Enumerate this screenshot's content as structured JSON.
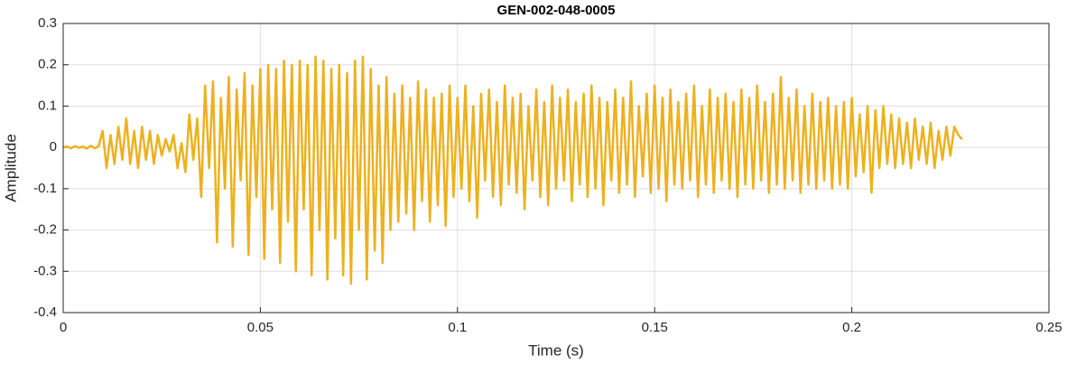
{
  "chart_data": {
    "type": "line",
    "title": "GEN-002-048-0005",
    "x_label": "Time (s)",
    "y_label": "Amplitude",
    "color": "#EDB120",
    "grid": true,
    "xlim": [
      0,
      0.25
    ],
    "xticks": [
      0,
      0.05,
      0.1,
      0.15,
      0.2,
      0.25
    ],
    "ylim": [
      -0.4,
      0.3
    ],
    "yticks": [
      -0.4,
      -0.3,
      -0.2,
      -0.1,
      0,
      0.1,
      0.2,
      0.3
    ],
    "x": [
      0,
      0.001,
      0.002,
      0.003,
      0.004,
      0.005,
      0.006,
      0.007,
      0.008,
      0.009,
      0.01,
      0.011,
      0.012,
      0.013,
      0.014,
      0.015,
      0.016,
      0.017,
      0.018,
      0.019,
      0.02,
      0.021,
      0.022,
      0.023,
      0.024,
      0.025,
      0.026,
      0.027,
      0.028,
      0.029,
      0.03,
      0.031,
      0.032,
      0.033,
      0.034,
      0.035,
      0.036,
      0.037,
      0.038,
      0.039,
      0.04,
      0.041,
      0.042,
      0.043,
      0.044,
      0.045,
      0.046,
      0.047,
      0.048,
      0.049,
      0.05,
      0.051,
      0.052,
      0.053,
      0.054,
      0.055,
      0.056,
      0.057,
      0.058,
      0.059,
      0.06,
      0.061,
      0.062,
      0.063,
      0.064,
      0.065,
      0.066,
      0.067,
      0.068,
      0.069,
      0.07,
      0.071,
      0.072,
      0.073,
      0.074,
      0.075,
      0.076,
      0.077,
      0.078,
      0.079,
      0.08,
      0.081,
      0.082,
      0.083,
      0.084,
      0.085,
      0.086,
      0.087,
      0.088,
      0.089,
      0.09,
      0.091,
      0.092,
      0.093,
      0.094,
      0.095,
      0.096,
      0.097,
      0.098,
      0.099,
      0.1,
      0.101,
      0.102,
      0.103,
      0.104,
      0.105,
      0.106,
      0.107,
      0.108,
      0.109,
      0.11,
      0.111,
      0.112,
      0.113,
      0.114,
      0.115,
      0.116,
      0.117,
      0.118,
      0.119,
      0.12,
      0.121,
      0.122,
      0.123,
      0.124,
      0.125,
      0.126,
      0.127,
      0.128,
      0.129,
      0.13,
      0.131,
      0.132,
      0.133,
      0.134,
      0.135,
      0.136,
      0.137,
      0.138,
      0.139,
      0.14,
      0.141,
      0.142,
      0.143,
      0.144,
      0.145,
      0.146,
      0.147,
      0.148,
      0.149,
      0.15,
      0.151,
      0.152,
      0.153,
      0.154,
      0.155,
      0.156,
      0.157,
      0.158,
      0.159,
      0.16,
      0.161,
      0.162,
      0.163,
      0.164,
      0.165,
      0.166,
      0.167,
      0.168,
      0.169,
      0.17,
      0.171,
      0.172,
      0.173,
      0.174,
      0.175,
      0.176,
      0.177,
      0.178,
      0.179,
      0.18,
      0.181,
      0.182,
      0.183,
      0.184,
      0.185,
      0.186,
      0.187,
      0.188,
      0.189,
      0.19,
      0.191,
      0.192,
      0.193,
      0.194,
      0.195,
      0.196,
      0.197,
      0.198,
      0.199,
      0.2,
      0.201,
      0.202,
      0.203,
      0.204,
      0.205,
      0.206,
      0.207,
      0.208,
      0.209,
      0.21,
      0.211,
      0.212,
      0.213,
      0.214,
      0.215,
      0.216,
      0.217,
      0.218,
      0.219,
      0.22,
      0.221,
      0.222,
      0.223,
      0.224,
      0.225,
      0.226,
      0.227,
      0.228
    ],
    "values": [
      0,
      0.002,
      -0.002,
      0.003,
      -0.001,
      0.002,
      -0.003,
      0.004,
      -0.002,
      0.003,
      0.04,
      -0.05,
      0.03,
      -0.04,
      0.05,
      -0.03,
      0.07,
      -0.04,
      0.04,
      -0.05,
      0.05,
      -0.03,
      0.04,
      -0.04,
      0.03,
      -0.02,
      0.02,
      -0.01,
      0.03,
      -0.05,
      0.01,
      -0.06,
      0.08,
      -0.03,
      0.07,
      -0.12,
      0.15,
      -0.05,
      0.16,
      -0.23,
      0.12,
      -0.1,
      0.17,
      -0.24,
      0.14,
      -0.08,
      0.18,
      -0.26,
      0.15,
      -0.12,
      0.19,
      -0.27,
      0.2,
      -0.15,
      0.19,
      -0.28,
      0.21,
      -0.18,
      0.2,
      -0.3,
      0.21,
      -0.15,
      0.2,
      -0.31,
      0.22,
      -0.2,
      0.21,
      -0.32,
      0.19,
      -0.22,
      0.2,
      -0.31,
      0.18,
      -0.33,
      0.21,
      -0.2,
      0.22,
      -0.32,
      0.19,
      -0.25,
      0.15,
      -0.28,
      0.17,
      -0.2,
      0.13,
      -0.18,
      0.15,
      -0.16,
      0.12,
      -0.2,
      0.16,
      -0.13,
      0.14,
      -0.18,
      0.12,
      -0.14,
      0.13,
      -0.19,
      0.15,
      -0.12,
      0.12,
      -0.1,
      0.15,
      -0.13,
      0.1,
      -0.17,
      0.13,
      -0.08,
      0.14,
      -0.12,
      0.11,
      -0.14,
      0.15,
      -0.09,
      0.12,
      -0.11,
      0.13,
      -0.15,
      0.1,
      -0.08,
      0.14,
      -0.12,
      0.11,
      -0.14,
      0.15,
      -0.1,
      0.12,
      -0.08,
      0.14,
      -0.13,
      0.11,
      -0.09,
      0.13,
      -0.12,
      0.15,
      -0.1,
      0.12,
      -0.14,
      0.11,
      -0.08,
      0.14,
      -0.11,
      0.12,
      -0.09,
      0.16,
      -0.12,
      0.1,
      -0.07,
      0.13,
      -0.11,
      0.15,
      -0.1,
      0.12,
      -0.13,
      0.14,
      -0.09,
      0.11,
      -0.1,
      0.13,
      -0.08,
      0.15,
      -0.12,
      0.1,
      -0.09,
      0.14,
      -0.11,
      0.12,
      -0.08,
      0.13,
      -0.1,
      0.11,
      -0.12,
      0.14,
      -0.09,
      0.12,
      -0.1,
      0.15,
      -0.08,
      0.11,
      -0.11,
      0.13,
      -0.09,
      0.17,
      -0.1,
      0.12,
      -0.08,
      0.14,
      -0.11,
      0.1,
      -0.09,
      0.13,
      -0.1,
      0.11,
      -0.08,
      0.12,
      -0.1,
      0.1,
      -0.09,
      0.11,
      -0.1,
      0.12,
      -0.07,
      0.08,
      -0.06,
      0.1,
      -0.11,
      0.09,
      -0.05,
      0.1,
      -0.04,
      0.08,
      -0.05,
      0.07,
      -0.04,
      0.06,
      -0.05,
      0.07,
      -0.03,
      0.05,
      -0.04,
      0.06,
      -0.05,
      0.04,
      -0.03,
      0.05,
      -0.02,
      0.05,
      0.03,
      0.02
    ]
  }
}
